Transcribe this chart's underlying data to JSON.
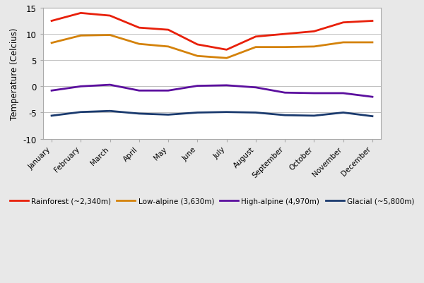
{
  "months": [
    "January",
    "February",
    "March",
    "April",
    "May",
    "June",
    "July",
    "August",
    "September",
    "October",
    "November",
    "December"
  ],
  "rainforest": [
    12.5,
    14.0,
    13.5,
    11.2,
    10.8,
    8.0,
    7.0,
    9.5,
    10.0,
    10.5,
    12.2,
    12.5
  ],
  "low_alpine": [
    8.3,
    9.7,
    9.8,
    8.1,
    7.6,
    5.8,
    5.4,
    7.5,
    7.5,
    7.6,
    8.4,
    8.4
  ],
  "high_alpine": [
    -0.8,
    0.0,
    0.3,
    -0.8,
    -0.8,
    0.1,
    0.2,
    -0.2,
    -1.2,
    -1.3,
    -1.3,
    -2.0
  ],
  "glacial": [
    -5.6,
    -4.9,
    -4.7,
    -5.2,
    -5.4,
    -5.0,
    -4.9,
    -5.0,
    -5.5,
    -5.6,
    -5.0,
    -5.7
  ],
  "colors": {
    "rainforest": "#E8200A",
    "low_alpine": "#D4820A",
    "high_alpine": "#5B0F9E",
    "glacial": "#1A3A6E"
  },
  "legend_labels": {
    "rainforest": "Rainforest (~2,340m)",
    "low_alpine": "Low-alpine (3,630m)",
    "high_alpine": "High-alpine (4,970m)",
    "glacial": "Glacial (~5,800m)"
  },
  "ylabel": "Temperature (Celcius)",
  "ylim": [
    -10,
    15
  ],
  "yticks": [
    -10,
    -5,
    0,
    5,
    10,
    15
  ],
  "figure_bg": "#E8E8E8",
  "plot_bg": "#FFFFFF",
  "grid_color": "#C0C0C0",
  "border_color": "#AAAAAA"
}
